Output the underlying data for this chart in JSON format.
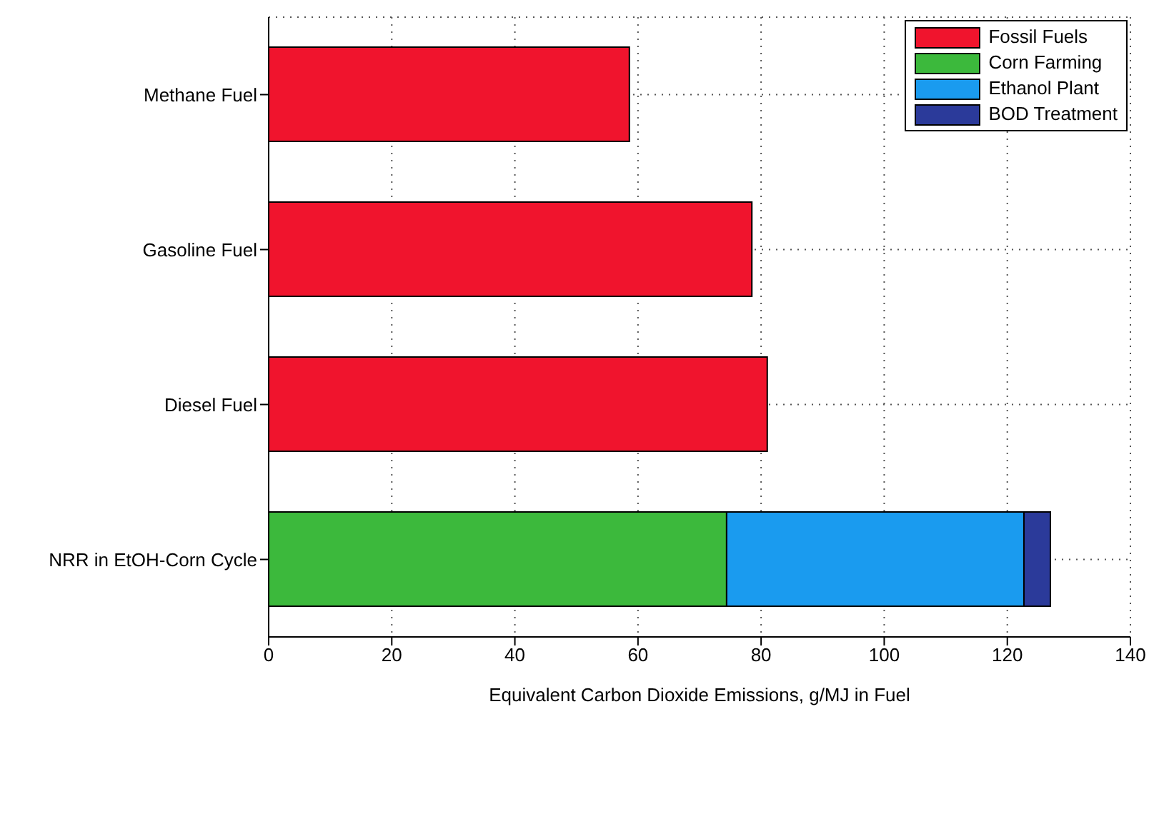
{
  "chart_data": {
    "type": "bar",
    "orientation": "horizontal",
    "stacked": true,
    "xlabel": "Equivalent Carbon Dioxide Emissions, g/MJ in Fuel",
    "categories": [
      "Methane Fuel",
      "Gasoline Fuel",
      "Diesel Fuel",
      "NRR in EtOH-Corn Cycle"
    ],
    "series": [
      {
        "name": "Fossil Fuels",
        "color": "#f0142d",
        "values": [
          58.6,
          78.5,
          81.0,
          null
        ]
      },
      {
        "name": "Corn Farming",
        "color": "#3cb93c",
        "values": [
          null,
          null,
          null,
          74.4
        ]
      },
      {
        "name": "Ethanol Plant",
        "color": "#1a9bef",
        "values": [
          null,
          null,
          null,
          48.3
        ]
      },
      {
        "name": "BOD Treatment",
        "color": "#2b3a9a",
        "values": [
          null,
          null,
          null,
          4.3
        ]
      }
    ],
    "xlim": [
      0,
      140
    ],
    "xticks": [
      0,
      20,
      40,
      60,
      80,
      100,
      120,
      140
    ],
    "grid": true,
    "legend": "top right"
  }
}
